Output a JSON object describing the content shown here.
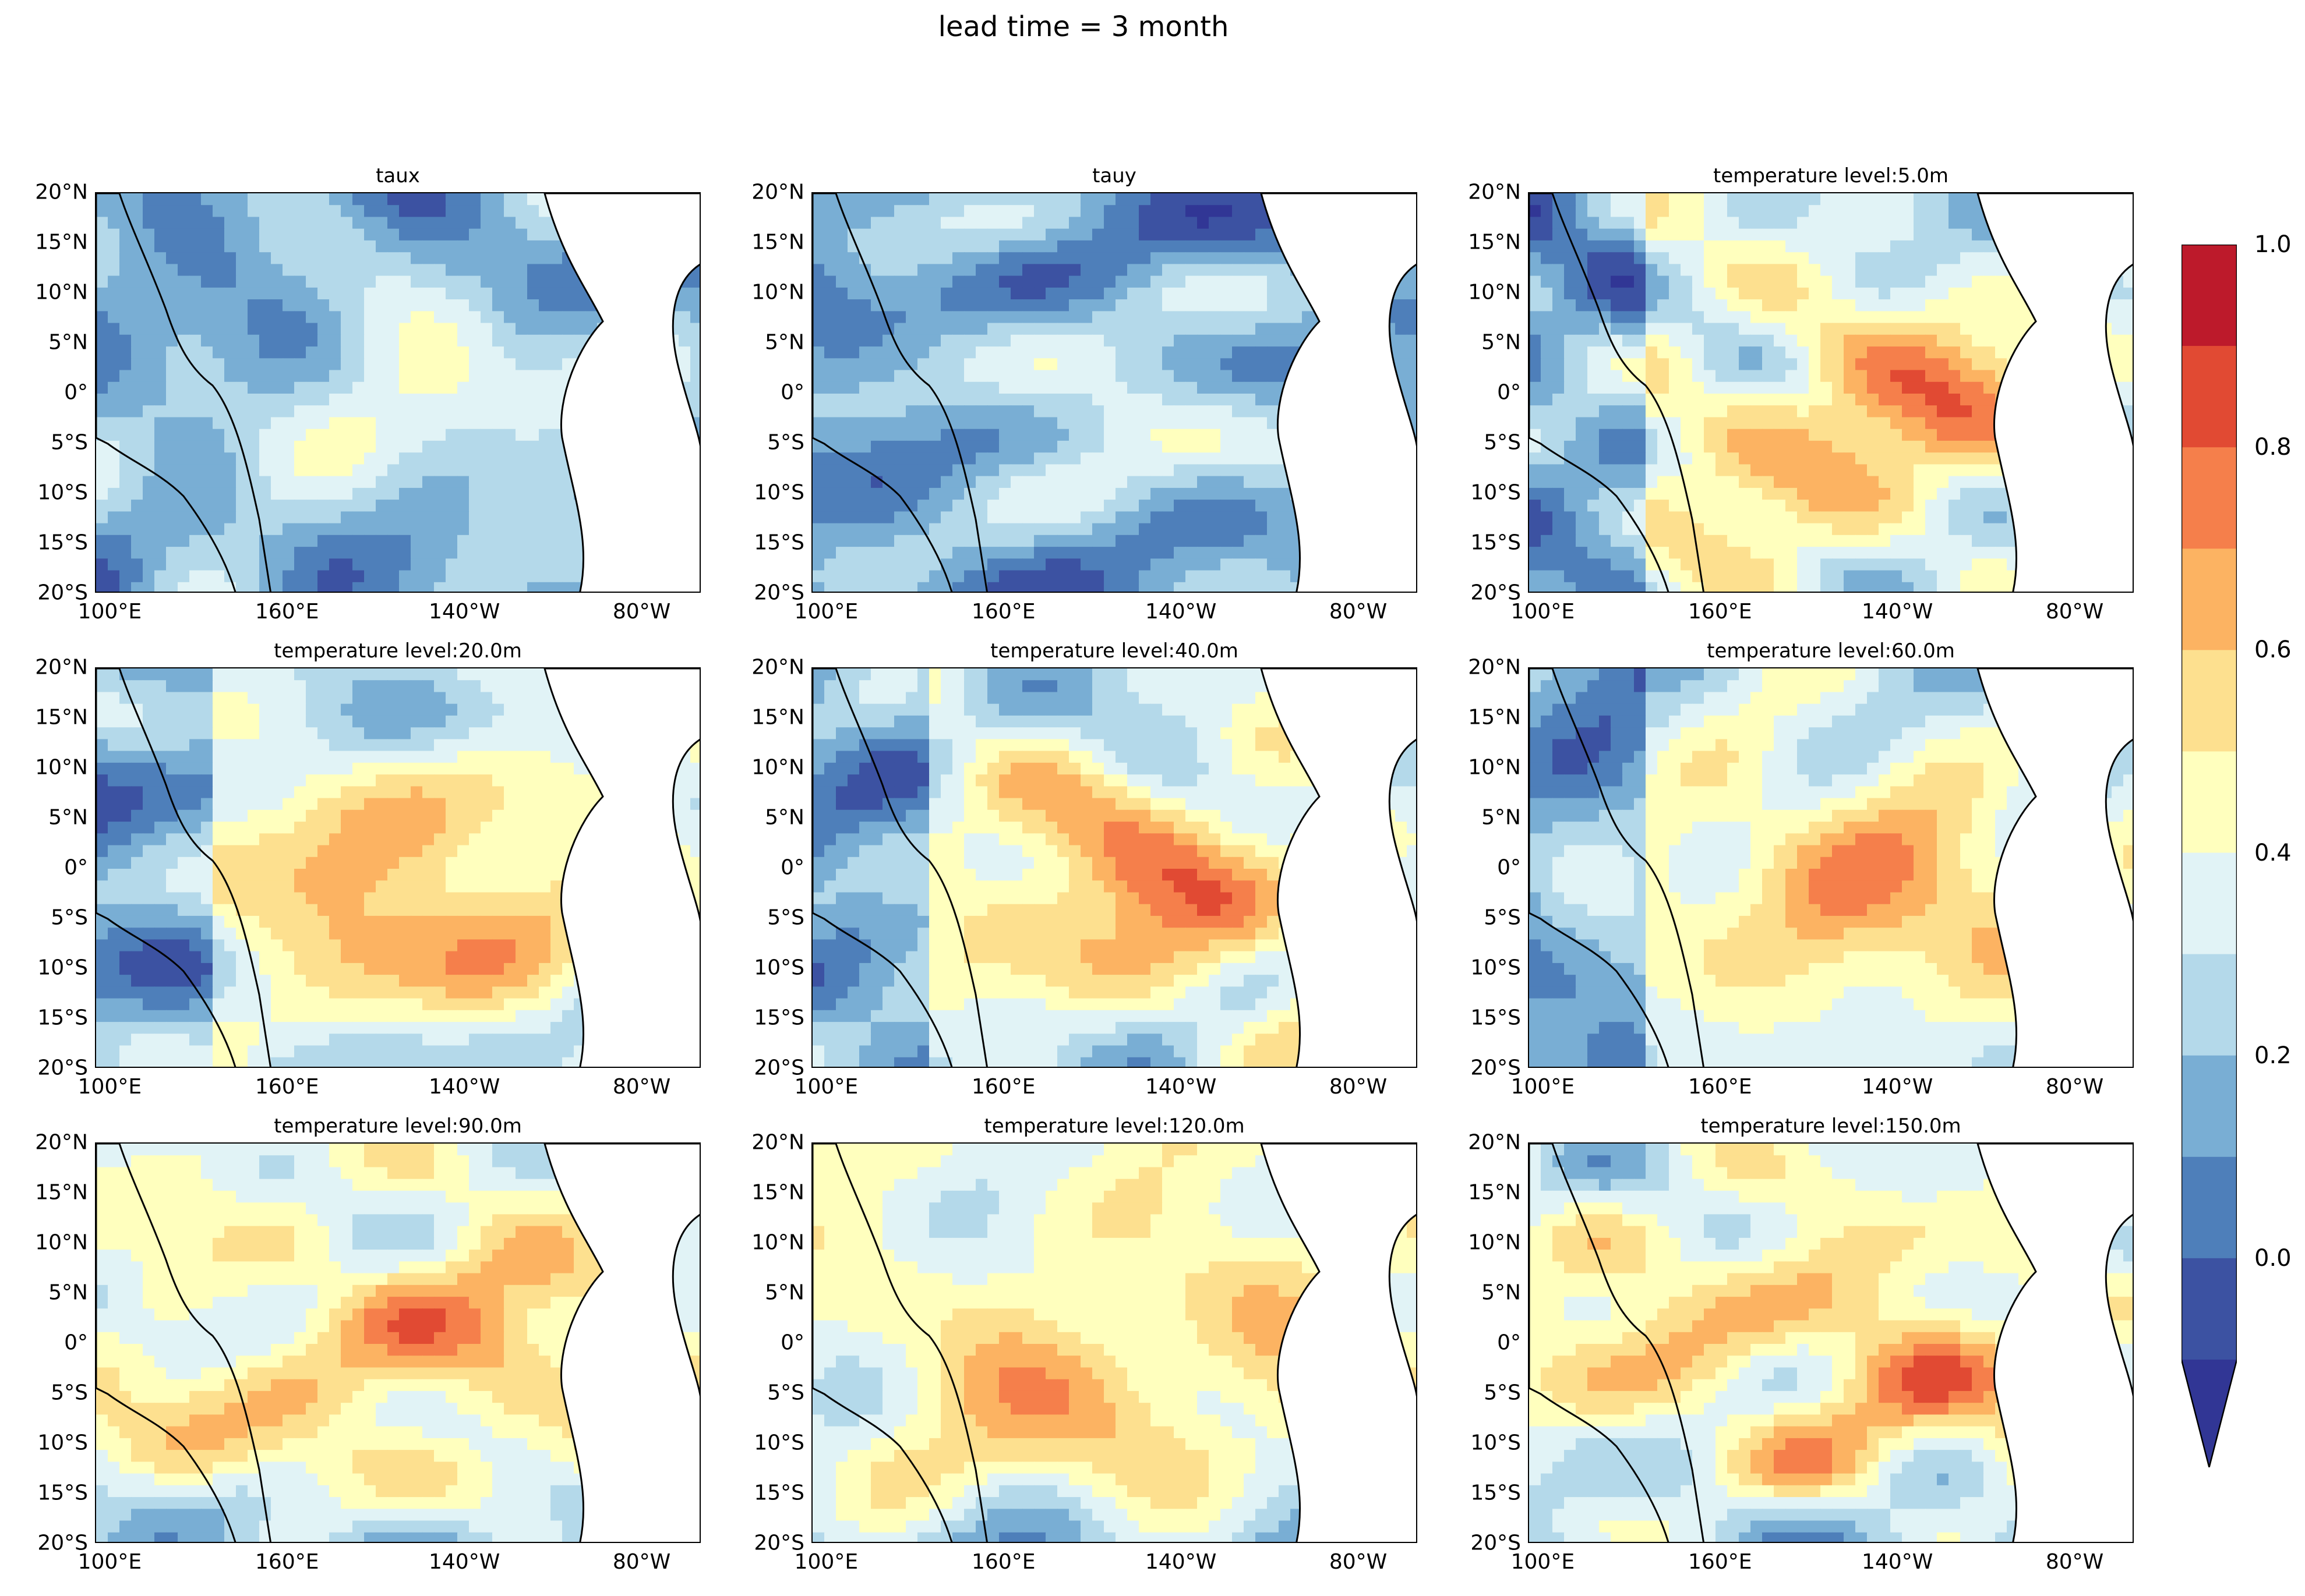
{
  "figure": {
    "suptitle": "lead time = 3 month"
  },
  "chart_data": {
    "type": "heatmap",
    "suptitle": "lead time = 3 month",
    "grid": "3x3 small multiples, filled contour maps of the tropical Pacific",
    "axes_common": {
      "xticks": [
        "100°E",
        "160°E",
        "140°W",
        "80°W"
      ],
      "yticks": [
        "20°N",
        "15°N",
        "10°N",
        "5°N",
        "0°",
        "5°S",
        "10°S",
        "15°S",
        "20°S"
      ],
      "ylim": [
        -20,
        20
      ]
    },
    "colorbar": {
      "colormap": "RdYlBu_r",
      "range": [
        -0.1,
        1.0
      ],
      "levels": [
        -0.1,
        0.0,
        0.1,
        0.2,
        0.3,
        0.4,
        0.5,
        0.6,
        0.7,
        0.8,
        0.9,
        1.0
      ],
      "colors": [
        "#3c52a2",
        "#4e7fba",
        "#79aed4",
        "#b4d9ea",
        "#e1f3f6",
        "#ffffbe",
        "#fde08f",
        "#fcb362",
        "#f57f4b",
        "#e14a33",
        "#bd1a2b"
      ],
      "under_color": "#313695",
      "extend": "min",
      "tick_labels": [
        "0.0",
        "0.2",
        "0.4",
        "0.6",
        "0.8",
        "1.0"
      ]
    },
    "panels": [
      {
        "title": "taux"
      },
      {
        "title": "tauy"
      },
      {
        "title": "temperature level:5.0m"
      },
      {
        "title": "temperature level:20.0m"
      },
      {
        "title": "temperature level:40.0m"
      },
      {
        "title": "temperature level:60.0m"
      },
      {
        "title": "temperature level:90.0m"
      },
      {
        "title": "temperature level:120.0m"
      },
      {
        "title": "temperature level:150.0m"
      }
    ]
  }
}
